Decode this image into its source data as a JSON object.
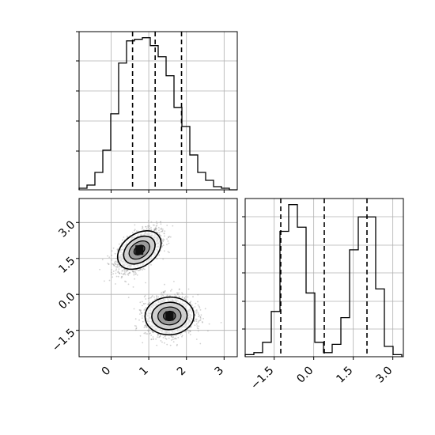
{
  "chart_data": [
    {
      "panel": "top-left",
      "type": "histogram",
      "variable": "x",
      "bins_edges": [
        -0.85,
        -0.64,
        -0.43,
        -0.22,
        -0.01,
        0.2,
        0.41,
        0.62,
        0.83,
        1.04,
        1.25,
        1.46,
        1.67,
        1.88,
        2.09,
        2.3,
        2.51,
        2.72,
        2.93,
        3.14,
        3.35
      ],
      "counts": [
        1,
        3,
        11,
        25,
        48,
        80,
        94,
        95,
        96,
        91,
        84,
        72,
        52,
        40,
        22,
        11,
        6,
        2,
        1,
        0
      ],
      "quantiles": [
        0.57,
        1.17,
        1.87
      ],
      "xlim": [
        -0.85,
        3.35
      ],
      "grid": true
    },
    {
      "panel": "bottom-left",
      "type": "2d-histogram-contour",
      "xvariable": "x",
      "yvariable": "y",
      "xlim": [
        -0.85,
        3.35
      ],
      "ylim": [
        -2.6,
        4.0
      ],
      "x_ticks": [
        "0",
        "1",
        "2",
        "3"
      ],
      "y_ticks": [
        "3.0",
        "1.5",
        "0.0",
        "−1.5"
      ],
      "x_tick_values": [
        0,
        1,
        2,
        3
      ],
      "y_tick_values": [
        3.0,
        1.5,
        0.0,
        -1.5
      ],
      "clusters": [
        {
          "center_x": 0.75,
          "center_y": 1.85,
          "sd_x": 0.28,
          "sd_y": 0.42,
          "rho": 0.55
        },
        {
          "center_x": 1.55,
          "center_y": -0.9,
          "sd_x": 0.32,
          "sd_y": 0.4,
          "rho": 0.05
        }
      ],
      "grid": true
    },
    {
      "panel": "bottom-right",
      "type": "histogram",
      "variable": "y",
      "bins_edges": [
        -2.6,
        -2.27,
        -1.94,
        -1.61,
        -1.28,
        -0.95,
        -0.62,
        -0.29,
        0.04,
        0.37,
        0.7,
        1.03,
        1.36,
        1.69,
        2.02,
        2.35,
        2.68,
        3.01,
        3.34
      ],
      "counts": [
        1,
        2,
        7,
        22,
        61,
        74,
        63,
        31,
        7,
        2,
        6,
        19,
        52,
        68,
        68,
        33,
        5,
        1
      ],
      "quantiles": [
        -1.25,
        0.4,
        2.02
      ],
      "xlim": [
        -2.6,
        3.4
      ],
      "x_ticks": [
        "−1.5",
        "0.0",
        "1.5",
        "3.0"
      ],
      "x_tick_values": [
        -1.5,
        0.0,
        1.5,
        3.0
      ],
      "grid": true
    }
  ]
}
